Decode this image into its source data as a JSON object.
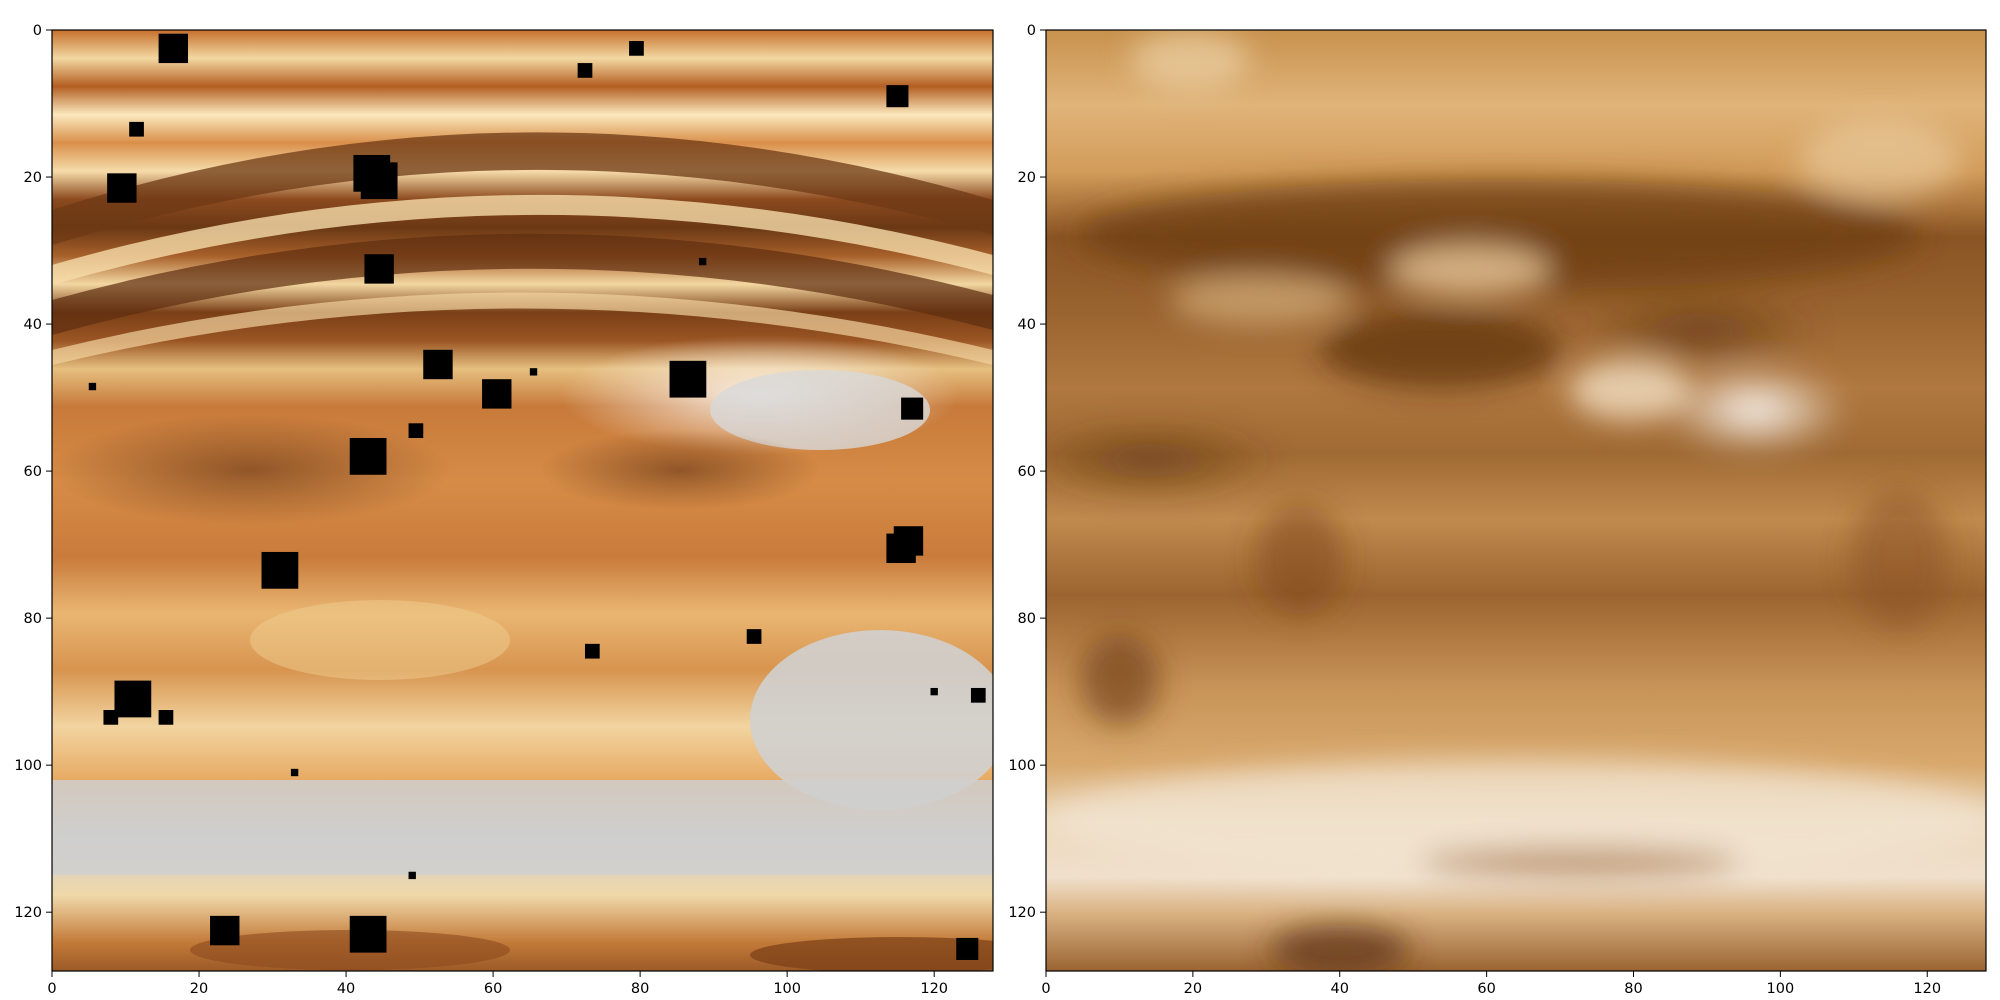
{
  "chart_data": [
    {
      "type": "heatmap",
      "panel": "left",
      "title": "",
      "xlabel": "",
      "ylabel": "",
      "xlim": [
        0,
        128
      ],
      "ylim": [
        128,
        0
      ],
      "grid": false,
      "colormap": "copper-like (white/tan/orange/brown)",
      "x_ticks": [
        0,
        20,
        40,
        60,
        80,
        100,
        120
      ],
      "y_ticks": [
        0,
        20,
        40,
        60,
        80,
        100,
        120
      ],
      "x_tick_labels": [
        "0",
        "20",
        "40",
        "60",
        "80",
        "100",
        "120"
      ],
      "y_tick_labels": [
        "0",
        "20",
        "40",
        "60",
        "80",
        "100",
        "120"
      ],
      "masked_squares": [
        [
          16.5,
          2.5,
          4
        ],
        [
          79.5,
          2.5,
          2
        ],
        [
          72.5,
          5.5,
          2
        ],
        [
          115,
          9,
          3
        ],
        [
          11.5,
          13.5,
          2
        ],
        [
          9.5,
          21.5,
          4
        ],
        [
          43.5,
          19.5,
          5
        ],
        [
          44.5,
          20.5,
          5
        ],
        [
          44.5,
          32.5,
          4
        ],
        [
          88.5,
          31.5,
          1
        ],
        [
          52.5,
          45.5,
          4
        ],
        [
          65.5,
          46.5,
          1
        ],
        [
          86.5,
          47.5,
          5
        ],
        [
          5.5,
          48.5,
          1
        ],
        [
          60.5,
          49.5,
          4
        ],
        [
          117,
          51.5,
          3
        ],
        [
          49.5,
          54.5,
          2
        ],
        [
          43,
          58,
          5
        ],
        [
          116.5,
          69.5,
          4
        ],
        [
          115.5,
          70.5,
          4
        ],
        [
          31,
          73.5,
          5
        ],
        [
          95.5,
          82.5,
          2
        ],
        [
          73.5,
          84.5,
          2
        ],
        [
          11,
          91,
          5
        ],
        [
          120,
          90,
          1
        ],
        [
          126,
          90.5,
          2
        ],
        [
          8,
          93.5,
          2
        ],
        [
          15.5,
          93.5,
          2
        ],
        [
          33,
          101,
          1
        ],
        [
          49,
          115,
          1
        ],
        [
          23.5,
          122.5,
          4
        ],
        [
          43,
          123,
          5
        ],
        [
          124.5,
          125,
          3
        ]
      ]
    },
    {
      "type": "heatmap",
      "panel": "right",
      "title": "",
      "xlabel": "",
      "ylabel": "",
      "xlim": [
        0,
        128
      ],
      "ylim": [
        128,
        0
      ],
      "grid": false,
      "colormap": "copper-like (white/tan/brown), blurred",
      "x_ticks": [
        0,
        20,
        40,
        60,
        80,
        100,
        120
      ],
      "y_ticks": [
        0,
        20,
        40,
        60,
        80,
        100,
        120
      ],
      "x_tick_labels": [
        "0",
        "20",
        "40",
        "60",
        "80",
        "100",
        "120"
      ],
      "y_tick_labels": [
        "0",
        "20",
        "40",
        "60",
        "80",
        "100",
        "120"
      ]
    }
  ]
}
